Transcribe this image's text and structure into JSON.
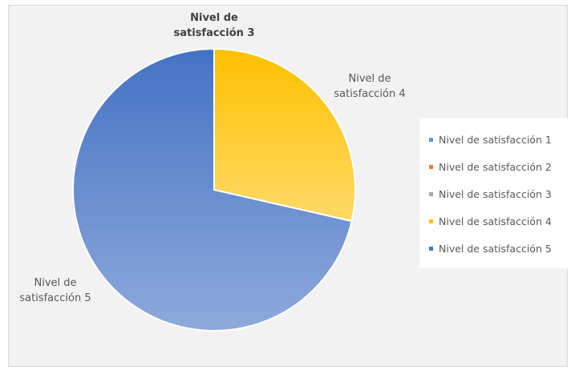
{
  "chart_data": {
    "type": "pie",
    "categories": [
      "Nivel de satisfacción 1",
      "Nivel de satisfacción 2",
      "Nivel de satisfacción 3",
      "Nivel de satisfacción 4",
      "Nivel de satisfacción 5"
    ],
    "values": [
      0,
      0,
      0,
      2,
      5
    ],
    "colors": [
      "#5B9BD5",
      "#ED7D31",
      "#A5A5A5",
      "#FFC000",
      "#4472C4"
    ],
    "legend_position": "right",
    "slice_labels": {
      "top_overlap": "Nivel de\nsatisfacción 3",
      "slice4": "Nivel de\nsatisfacción 4",
      "slice5": "Nivel de\nsatisfacción 5"
    }
  }
}
